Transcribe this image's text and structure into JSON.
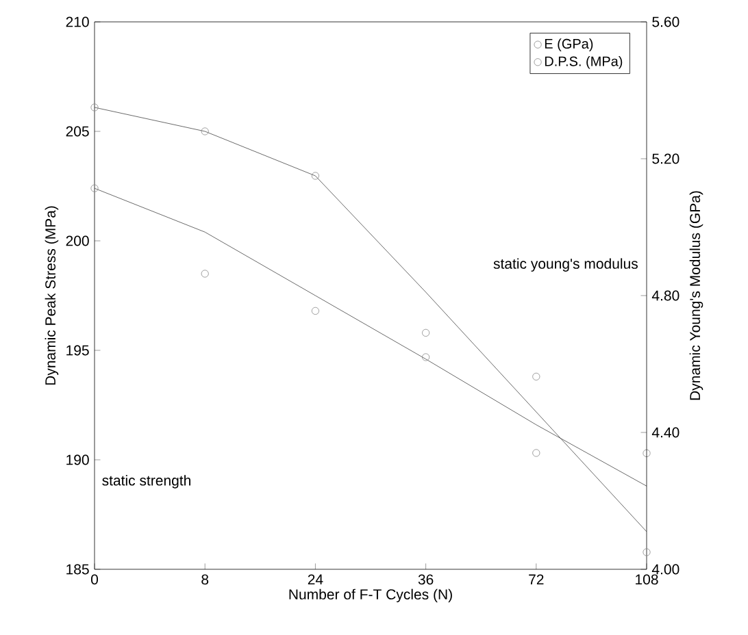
{
  "chart_data": {
    "type": "line",
    "xlabel": "Number of F-T Cycles (N)",
    "ylabel": "Dynamic Peak Stress (MPa)",
    "y2label": "Dynamic Young's Modulus (GPa)",
    "categories": [
      "0",
      "8",
      "24",
      "36",
      "72",
      "108"
    ],
    "series": [
      {
        "name": "E (GPa)",
        "type": "scatter",
        "axis": "y2",
        "marker": "circle",
        "color": "#888888",
        "values": [
          5.35,
          5.28,
          5.15,
          4.62,
          4.34,
          4.05
        ]
      },
      {
        "name": "D.P.S. (MPa)",
        "type": "scatter",
        "marker": "circle",
        "color": "#888888",
        "values": [
          202.4,
          198.5,
          196.8,
          195.8,
          193.8,
          190.3
        ]
      },
      {
        "axis": "y2",
        "color": "#444444",
        "values": [
          5.35,
          5.28,
          5.15,
          4.81,
          4.46,
          4.11
        ]
      },
      {
        "color": "#444444",
        "values": [
          202.4,
          200.4,
          197.5,
          194.6,
          191.6,
          188.8
        ]
      }
    ],
    "ylim": [
      185,
      210
    ],
    "yticks": [
      185,
      190,
      195,
      200,
      205,
      210
    ],
    "y2lim": [
      4.0,
      5.6
    ],
    "y2ticks": [
      {
        "value": 4.0,
        "label": "4.00"
      },
      {
        "value": 4.4,
        "label": "4.40"
      },
      {
        "value": 4.8,
        "label": "4.80"
      },
      {
        "value": 5.2,
        "label": "5.20"
      },
      {
        "value": 5.6,
        "label": "5.60"
      }
    ],
    "annotations": [
      "static young's modulus",
      "static strength"
    ],
    "legend": "top right",
    "grid": false
  }
}
